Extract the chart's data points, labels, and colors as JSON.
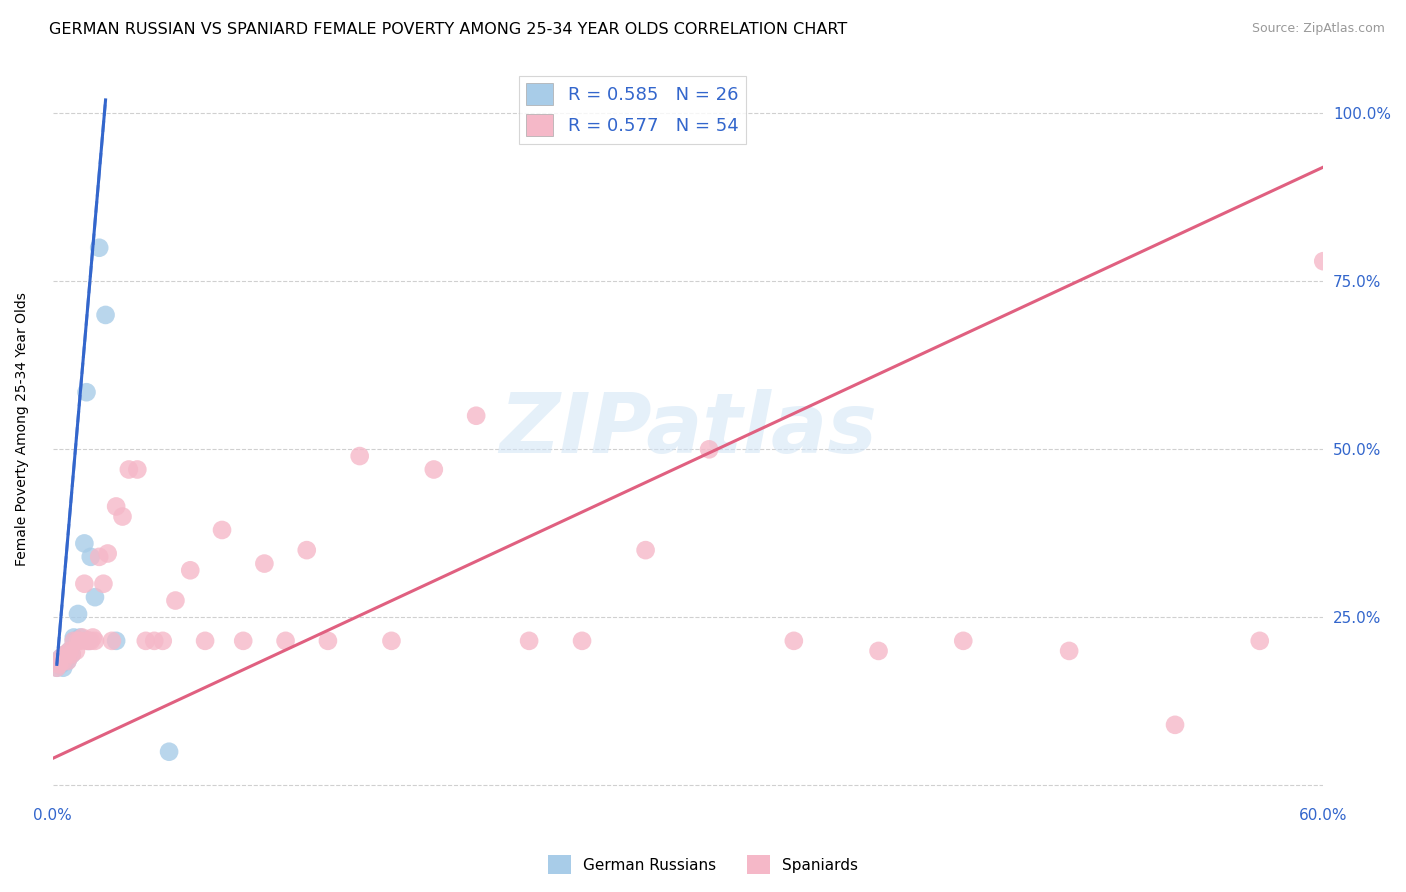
{
  "title": "GERMAN RUSSIAN VS SPANIARD FEMALE POVERTY AMONG 25-34 YEAR OLDS CORRELATION CHART",
  "source": "Source: ZipAtlas.com",
  "ylabel": "Female Poverty Among 25-34 Year Olds",
  "xlim": [
    0.0,
    0.6
  ],
  "ylim": [
    -0.02,
    1.08
  ],
  "gr_color": "#a8cce8",
  "sp_color": "#f5b8c8",
  "gr_line_color": "#3366cc",
  "sp_line_color": "#e06080",
  "gr_R": 0.585,
  "gr_N": 26,
  "sp_R": 0.577,
  "sp_N": 54,
  "watermark_text": "ZIPatlas",
  "title_fontsize": 11.5,
  "axis_label_fontsize": 10,
  "tick_fontsize": 11,
  "legend_fontsize": 13,
  "source_fontsize": 9,
  "background_color": "#ffffff",
  "grid_color": "#d0d0d0",
  "tick_color": "#3366cc",
  "german_russian_x": [
    0.002,
    0.003,
    0.004,
    0.004,
    0.005,
    0.005,
    0.006,
    0.006,
    0.007,
    0.007,
    0.008,
    0.009,
    0.01,
    0.01,
    0.011,
    0.012,
    0.013,
    0.015,
    0.016,
    0.017,
    0.018,
    0.02,
    0.022,
    0.025,
    0.03,
    0.055
  ],
  "german_russian_y": [
    0.175,
    0.185,
    0.18,
    0.19,
    0.175,
    0.19,
    0.185,
    0.195,
    0.185,
    0.195,
    0.2,
    0.195,
    0.215,
    0.22,
    0.215,
    0.255,
    0.22,
    0.36,
    0.585,
    0.215,
    0.34,
    0.28,
    0.8,
    0.7,
    0.215,
    0.05
  ],
  "spaniard_x": [
    0.002,
    0.003,
    0.004,
    0.005,
    0.006,
    0.007,
    0.008,
    0.009,
    0.01,
    0.011,
    0.012,
    0.013,
    0.014,
    0.015,
    0.016,
    0.017,
    0.018,
    0.019,
    0.02,
    0.022,
    0.024,
    0.026,
    0.028,
    0.03,
    0.033,
    0.036,
    0.04,
    0.044,
    0.048,
    0.052,
    0.058,
    0.065,
    0.072,
    0.08,
    0.09,
    0.1,
    0.11,
    0.12,
    0.13,
    0.145,
    0.16,
    0.18,
    0.2,
    0.225,
    0.25,
    0.28,
    0.31,
    0.35,
    0.39,
    0.43,
    0.48,
    0.53,
    0.57,
    0.6
  ],
  "spaniard_y": [
    0.175,
    0.18,
    0.19,
    0.185,
    0.195,
    0.185,
    0.2,
    0.195,
    0.215,
    0.2,
    0.215,
    0.215,
    0.22,
    0.3,
    0.215,
    0.215,
    0.215,
    0.22,
    0.215,
    0.34,
    0.3,
    0.345,
    0.215,
    0.415,
    0.4,
    0.47,
    0.47,
    0.215,
    0.215,
    0.215,
    0.275,
    0.32,
    0.215,
    0.38,
    0.215,
    0.33,
    0.215,
    0.35,
    0.215,
    0.49,
    0.215,
    0.47,
    0.55,
    0.215,
    0.215,
    0.35,
    0.5,
    0.215,
    0.2,
    0.215,
    0.2,
    0.09,
    0.215,
    0.78
  ],
  "sp_trendline_x0": 0.0,
  "sp_trendline_y0": 0.04,
  "sp_trendline_x1": 0.6,
  "sp_trendline_y1": 0.92,
  "gr_trendline_x0": 0.002,
  "gr_trendline_y0": 0.18,
  "gr_trendline_x1": 0.025,
  "gr_trendline_y1": 1.02
}
